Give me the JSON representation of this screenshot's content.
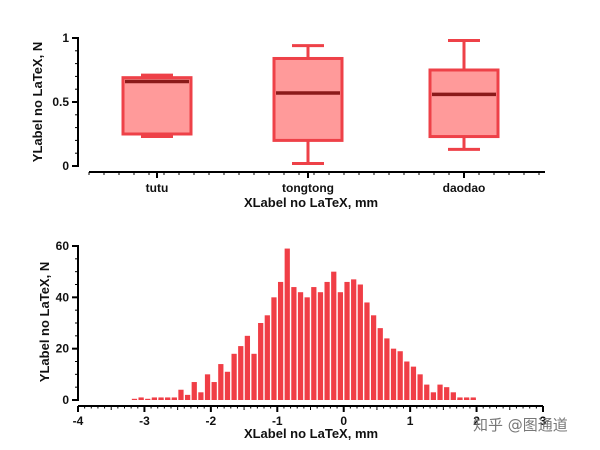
{
  "colors": {
    "fill": "#ff9a9a",
    "stroke": "#ee4148",
    "median": "#8b1a1a",
    "bar": "#f03e46",
    "axis": "#000000"
  },
  "watermark": "知乎 @图通道",
  "chart_data": [
    {
      "type": "box",
      "categories": [
        "tutu",
        "tongtong",
        "daodao"
      ],
      "boxes": [
        {
          "min": 0.23,
          "q1": 0.25,
          "median": 0.66,
          "q3": 0.69,
          "max": 0.71
        },
        {
          "min": 0.02,
          "q1": 0.2,
          "median": 0.57,
          "q3": 0.84,
          "max": 0.94
        },
        {
          "min": 0.13,
          "q1": 0.23,
          "median": 0.56,
          "q3": 0.75,
          "max": 0.98
        }
      ],
      "xlabel": "XLabel no LaTeX, mm",
      "ylabel": "YLabel no LaTeX, N",
      "ylim": [
        0,
        1
      ],
      "yticks": [
        "0",
        "0.5",
        "1"
      ]
    },
    {
      "type": "bar",
      "x_start": -3.2,
      "bin_width": 0.1,
      "values": [
        0,
        1,
        0,
        1,
        1,
        1,
        1,
        4,
        2,
        7,
        3,
        10,
        7,
        14,
        11,
        18,
        21,
        25,
        18,
        30,
        33,
        40,
        46,
        59,
        44,
        42,
        40,
        44,
        42,
        46,
        50,
        42,
        46,
        47,
        45,
        38,
        33,
        28,
        24,
        20,
        19,
        15,
        13,
        10,
        6,
        3,
        6,
        5,
        3,
        1,
        1,
        1
      ],
      "xlabel": "XLabel no LaTeX, mm",
      "ylabel": "YLabel no LaTeX, N",
      "xlim": [
        -4,
        3
      ],
      "ylim": [
        0,
        60
      ],
      "xticks": [
        "-4",
        "-3",
        "-2",
        "-1",
        "0",
        "1",
        "2",
        "3"
      ],
      "yticks": [
        "0",
        "20",
        "40",
        "60"
      ]
    }
  ]
}
